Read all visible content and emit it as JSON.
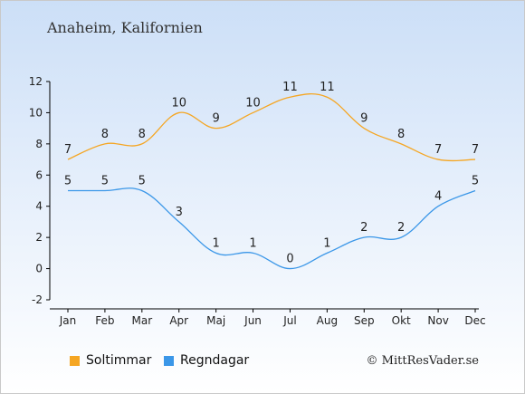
{
  "title": "Anaheim, Kalifornien",
  "copyright": "© MittResVader.se",
  "chart_data": {
    "type": "line",
    "categories": [
      "Jan",
      "Feb",
      "Mar",
      "Apr",
      "Maj",
      "Jun",
      "Jul",
      "Aug",
      "Sep",
      "Okt",
      "Nov",
      "Dec"
    ],
    "ylim": [
      -2,
      12
    ],
    "yticks": [
      -2,
      0,
      2,
      4,
      6,
      8,
      10,
      12
    ],
    "grid": false,
    "legend_position": "bottom-left",
    "series": [
      {
        "name": "Soltimmar",
        "color": "#f5a623",
        "values": [
          7,
          8,
          8,
          10,
          9,
          10,
          11,
          11,
          9,
          8,
          7,
          7
        ]
      },
      {
        "name": "Regndagar",
        "color": "#3b97e8",
        "values": [
          5,
          5,
          5,
          3,
          1,
          1,
          0,
          1,
          2,
          2,
          4,
          5
        ]
      }
    ]
  }
}
